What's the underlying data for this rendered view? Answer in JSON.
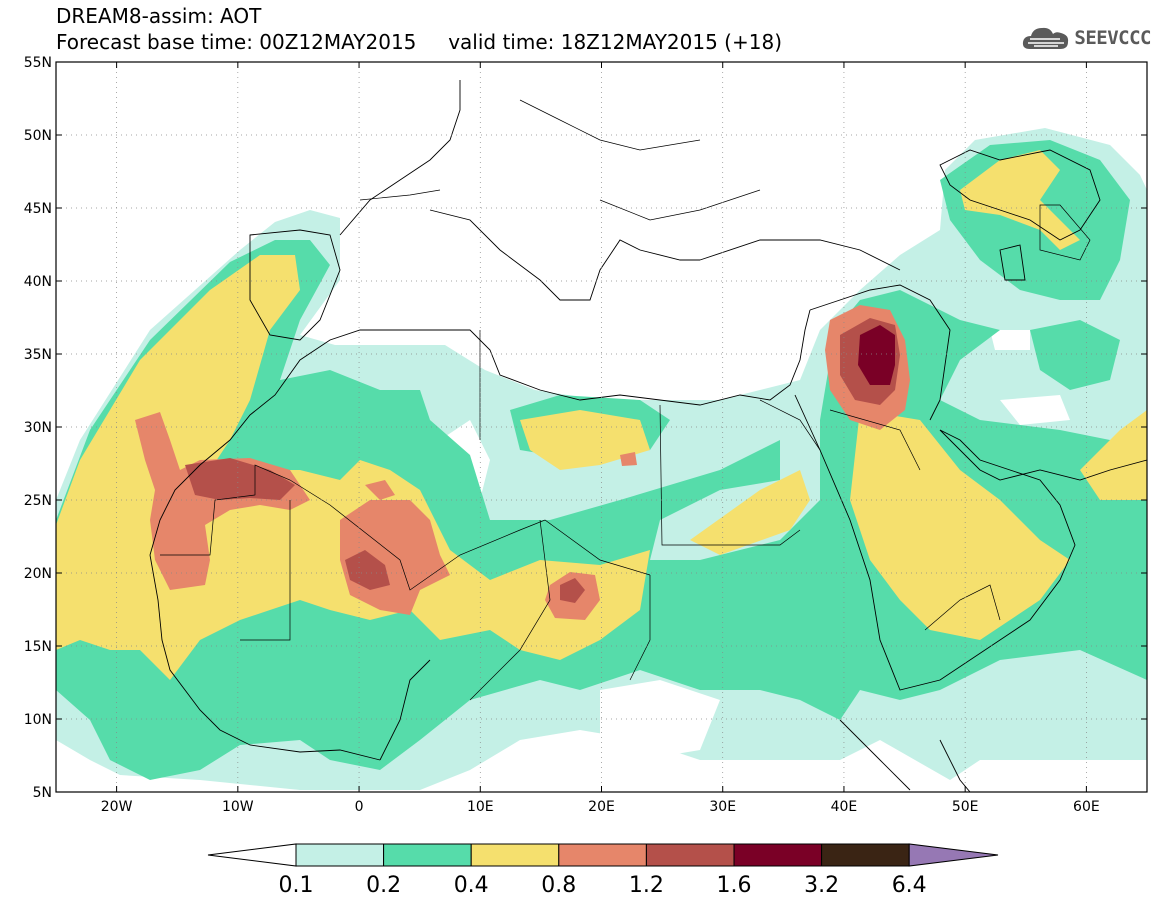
{
  "header": {
    "title_line1": "DREAM8-assim: AOT",
    "title_line2": "Forecast base time: 00Z12MAY2015     valid time: 18Z12MAY2015 (+18)"
  },
  "logo": {
    "text": "SEEVCCC",
    "icon": "cloud-icon",
    "color": "#5a5a5a"
  },
  "map": {
    "lon_range": [
      -25,
      65
    ],
    "lat_range": [
      5,
      55
    ],
    "lat_ticks": [
      "5N",
      "10N",
      "15N",
      "20N",
      "25N",
      "30N",
      "35N",
      "40N",
      "45N",
      "50N",
      "55N"
    ],
    "lon_ticks": [
      "20W",
      "10W",
      "0",
      "10E",
      "20E",
      "30E",
      "40E",
      "50E",
      "60E"
    ],
    "grid": "dotted"
  },
  "colorbar": {
    "labels": [
      "0.1",
      "0.2",
      "0.4",
      "0.8",
      "1.2",
      "1.6",
      "3.2",
      "6.4"
    ],
    "colors": [
      "#ffffff",
      "#c4f0e6",
      "#56dcaa",
      "#f5e06e",
      "#e6866a",
      "#b4504a",
      "#7a0026",
      "#3a2414",
      "#9678b4"
    ]
  }
}
